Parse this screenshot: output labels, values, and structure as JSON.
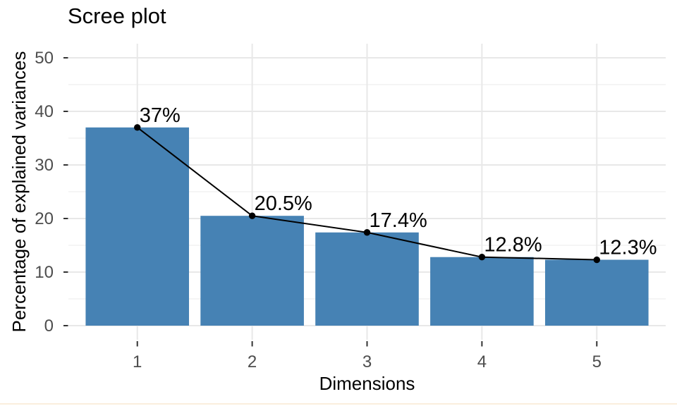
{
  "page": {
    "background": "#ffffff",
    "bottom_accent_color": "#faeedc"
  },
  "chart_data": {
    "type": "bar",
    "overlay": "line-with-points",
    "title": "Scree plot",
    "xlabel": "Dimensions",
    "ylabel": "Percentage of explained variances",
    "categories": [
      "1",
      "2",
      "3",
      "4",
      "5"
    ],
    "values": [
      37,
      20.5,
      17.4,
      12.8,
      12.3
    ],
    "point_labels": [
      "37%",
      "20.5%",
      "17.4%",
      "12.8%",
      "12.3%"
    ],
    "y_ticks": [
      0,
      10,
      20,
      30,
      40,
      50
    ],
    "y_tick_labels": [
      "0",
      "10",
      "20",
      "30",
      "40",
      "50"
    ],
    "y_minor_ticks": [
      5,
      15,
      25,
      35,
      45
    ],
    "ylim": [
      0,
      50
    ],
    "grid": "major-and-minor",
    "legend": "none",
    "colors": {
      "bar_fill": "#4682b4",
      "line": "#000000",
      "point": "#000000",
      "data_label": "#000000",
      "tick_label": "#4d4d4d",
      "axis_title": "#000000",
      "title": "#000000",
      "major_grid": "#e8e8e8",
      "minor_grid": "#f2f2f2",
      "tick_mark": "#333333"
    }
  }
}
